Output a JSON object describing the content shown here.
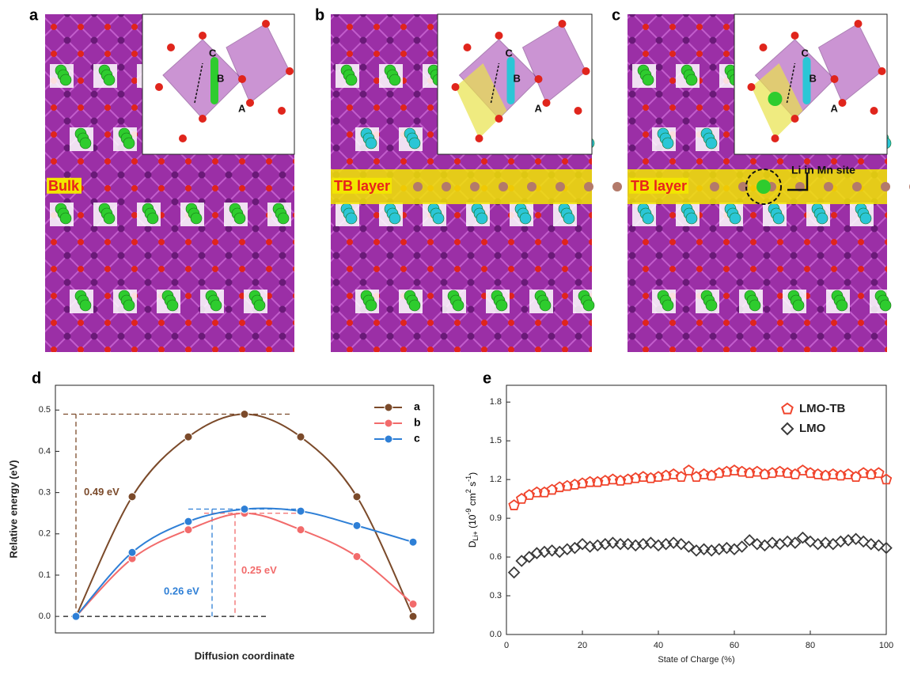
{
  "panels": [
    {
      "label": "a",
      "tag": "Bulk",
      "inset": [
        "C",
        "B",
        "A"
      ]
    },
    {
      "label": "b",
      "tag": "TB layer",
      "inset": [
        "C",
        "B",
        "A"
      ]
    },
    {
      "label": "c",
      "tag": "TB layer",
      "note": "Li in Mn site",
      "inset": [
        "C",
        "B",
        "A"
      ]
    }
  ],
  "chart_data": [
    {
      "type": "line",
      "panel": "d",
      "xlabel": "Diffusion coordinate",
      "ylabel": "Relative energy (eV)",
      "ylim": [
        -0.04,
        0.56
      ],
      "yticks": [
        {
          "value": 0,
          "label": "0.0"
        },
        0.1,
        0.2,
        0.3,
        0.4,
        0.5
      ],
      "legend": "upper right",
      "series": [
        {
          "name": "a",
          "color": "#7b4a2a",
          "values": [
            0,
            0.29,
            0.435,
            0.49,
            0.435,
            0.29,
            0
          ]
        },
        {
          "name": "b",
          "color": "#f26b6b",
          "values": [
            0,
            0.14,
            0.21,
            0.25,
            0.21,
            0.145,
            0.03
          ]
        },
        {
          "name": "c",
          "color": "#2e7fd6",
          "values": [
            0,
            0.155,
            0.23,
            0.26,
            0.255,
            0.22,
            0.18
          ]
        }
      ],
      "annotations": [
        "0.49 eV",
        "0.26 eV",
        "0.25 eV"
      ]
    },
    {
      "type": "scatter",
      "panel": "e",
      "xlabel": "State of Charge (%)",
      "ylabel": {
        "main": "D",
        "sub": "Li+",
        "open": " (10",
        "exp1": "-9",
        "mid": " cm",
        "exp2": "2",
        "mid2": " s",
        "exp3": "-1",
        "close": ")"
      },
      "xlim": [
        0,
        100
      ],
      "xticks": [
        0,
        20,
        40,
        60,
        80,
        100
      ],
      "ylim": [
        0,
        1.93
      ],
      "yticks": [
        {
          "value": 0,
          "label": "0.0"
        },
        0.3,
        0.6,
        0.9,
        1.2,
        1.5,
        1.8
      ],
      "legend": "upper right",
      "x": [
        2,
        4,
        6,
        8,
        10,
        12,
        14,
        16,
        18,
        20,
        22,
        24,
        26,
        28,
        30,
        32,
        34,
        36,
        38,
        40,
        42,
        44,
        46,
        48,
        50,
        52,
        54,
        56,
        58,
        60,
        62,
        64,
        66,
        68,
        70,
        72,
        74,
        76,
        78,
        80,
        82,
        84,
        86,
        88,
        90,
        92,
        94,
        96,
        98,
        100
      ],
      "series": [
        {
          "name": "LMO-TB",
          "color": "#f0442c",
          "marker": "pentagon",
          "values": [
            1.0,
            1.05,
            1.08,
            1.1,
            1.1,
            1.12,
            1.14,
            1.15,
            1.16,
            1.17,
            1.18,
            1.18,
            1.19,
            1.2,
            1.19,
            1.2,
            1.21,
            1.22,
            1.21,
            1.22,
            1.23,
            1.24,
            1.22,
            1.27,
            1.22,
            1.24,
            1.23,
            1.25,
            1.26,
            1.27,
            1.26,
            1.25,
            1.26,
            1.24,
            1.25,
            1.26,
            1.25,
            1.24,
            1.27,
            1.25,
            1.24,
            1.23,
            1.24,
            1.23,
            1.24,
            1.22,
            1.25,
            1.24,
            1.25,
            1.2
          ]
        },
        {
          "name": "LMO",
          "color": "#3a3a3a",
          "marker": "diamond",
          "values": [
            0.48,
            0.57,
            0.6,
            0.63,
            0.64,
            0.65,
            0.64,
            0.66,
            0.67,
            0.7,
            0.68,
            0.69,
            0.7,
            0.71,
            0.7,
            0.7,
            0.69,
            0.7,
            0.71,
            0.69,
            0.7,
            0.71,
            0.7,
            0.68,
            0.65,
            0.66,
            0.65,
            0.66,
            0.67,
            0.66,
            0.68,
            0.73,
            0.7,
            0.69,
            0.71,
            0.7,
            0.72,
            0.71,
            0.75,
            0.72,
            0.7,
            0.71,
            0.7,
            0.72,
            0.73,
            0.74,
            0.72,
            0.7,
            0.69,
            0.67
          ]
        }
      ]
    }
  ]
}
